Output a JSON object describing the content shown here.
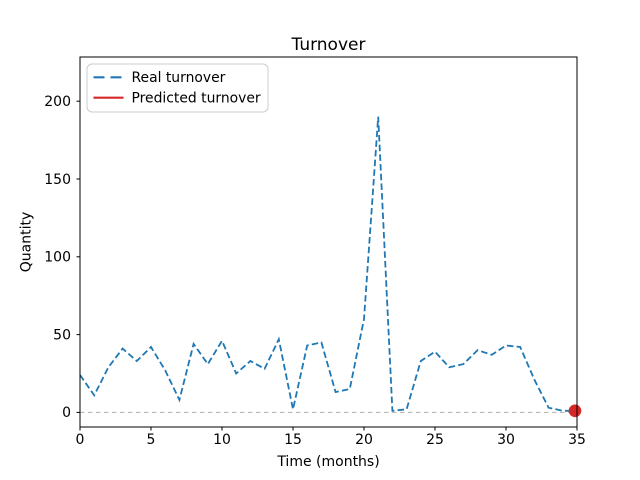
{
  "title": "Turnover",
  "xlabel": "Time (months)",
  "ylabel": "Quantity",
  "legend": {
    "position": "upper-left",
    "items": [
      {
        "label": "Real turnover",
        "color": "#1f77b4",
        "line_style": "dashed"
      },
      {
        "label": "Predicted turnover",
        "color": "#d62728",
        "line_style": "solid"
      }
    ]
  },
  "colors": {
    "real_line": "#1f77b4",
    "predicted_marker": "#d62728",
    "gridline": "#b0b0b0",
    "axes_frame": "#000000",
    "legend_border": "#cccccc"
  },
  "chart_data": {
    "type": "line",
    "title": "Turnover",
    "xlabel": "Time (months)",
    "ylabel": "Quantity",
    "xlim": [
      0,
      35
    ],
    "ylim": [
      -9.4,
      228.4
    ],
    "xticks": [
      0,
      5,
      10,
      15,
      20,
      25,
      30,
      35
    ],
    "yticks": [
      0,
      50,
      100,
      150,
      200
    ],
    "grid": "single dashed horizontal gridline at y=0",
    "legend_position": "upper left",
    "x": [
      0,
      1,
      2,
      3,
      4,
      5,
      6,
      7,
      8,
      9,
      10,
      11,
      12,
      13,
      14,
      15,
      16,
      17,
      18,
      19,
      20,
      21,
      22,
      23,
      24,
      25,
      26,
      27,
      28,
      29,
      30,
      31,
      32,
      33,
      34,
      35
    ],
    "series": [
      {
        "name": "Real turnover",
        "color": "#1f77b4",
        "line_style": "dashed",
        "values": [
          24,
          11,
          29,
          41,
          33,
          42,
          27,
          8,
          44,
          31,
          46,
          25,
          33,
          28,
          47,
          2,
          43,
          45,
          13,
          15,
          60,
          190,
          1,
          2,
          33,
          39,
          29,
          31,
          40,
          37,
          43,
          42,
          21,
          3,
          1,
          1
        ]
      },
      {
        "name": "Predicted turnover",
        "color": "#d62728",
        "line_style": "solid",
        "marker": "circle",
        "points": [
          {
            "x": 35,
            "y": 1
          }
        ]
      }
    ]
  }
}
